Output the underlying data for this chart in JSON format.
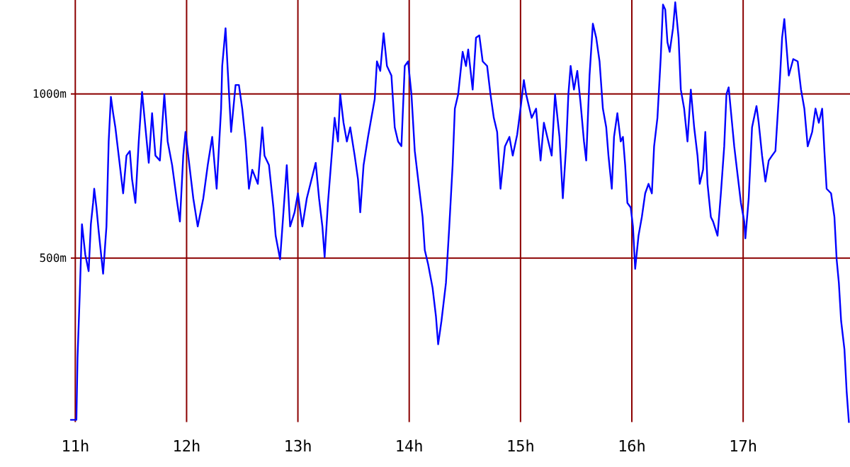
{
  "chart_data": {
    "type": "line",
    "grid": true,
    "marker": "none",
    "line_style": "solid",
    "xlim": [
      10.96,
      17.96
    ],
    "ylim": [
      0,
      1286
    ],
    "xticks": [
      {
        "value": 11,
        "label": "11h"
      },
      {
        "value": 12,
        "label": "12h"
      },
      {
        "value": 13,
        "label": "13h"
      },
      {
        "value": 14,
        "label": "14h"
      },
      {
        "value": 15,
        "label": "15h"
      },
      {
        "value": 16,
        "label": "16h"
      },
      {
        "value": 17,
        "label": "17h"
      }
    ],
    "yticks": [
      {
        "value": 500,
        "label": "500m"
      },
      {
        "value": 1000,
        "label": "1000m"
      }
    ],
    "series": [
      {
        "color": "#0000ff",
        "x": [
          10.96,
          11.01,
          11.02,
          11.04,
          11.06,
          11.09,
          11.12,
          11.14,
          11.16,
          11.17,
          11.19,
          11.21,
          11.25,
          11.28,
          11.3,
          11.32,
          11.34,
          11.36,
          11.39,
          11.43,
          11.46,
          11.49,
          11.51,
          11.54,
          11.57,
          11.6,
          11.63,
          11.66,
          11.69,
          11.72,
          11.76,
          11.8,
          11.83,
          11.87,
          11.91,
          11.94,
          11.97,
          11.99,
          12.02,
          12.06,
          12.1,
          12.15,
          12.19,
          12.23,
          12.27,
          12.31,
          12.32,
          12.35,
          12.37,
          12.4,
          12.44,
          12.47,
          12.5,
          12.53,
          12.56,
          12.59,
          12.64,
          12.68,
          12.7,
          12.74,
          12.78,
          12.8,
          12.84,
          12.87,
          12.9,
          12.93,
          12.97,
          13.0,
          13.04,
          13.08,
          13.16,
          13.19,
          13.22,
          13.24,
          13.27,
          13.3,
          13.33,
          13.36,
          13.38,
          13.41,
          13.44,
          13.47,
          13.51,
          13.54,
          13.56,
          13.59,
          13.63,
          13.66,
          13.69,
          13.71,
          13.74,
          13.77,
          13.8,
          13.84,
          13.87,
          13.9,
          13.93,
          13.96,
          13.99,
          14.02,
          14.05,
          14.09,
          14.12,
          14.14,
          14.17,
          14.21,
          14.24,
          14.26,
          14.29,
          14.33,
          14.36,
          14.39,
          14.41,
          14.44,
          14.48,
          14.51,
          14.53,
          14.57,
          14.6,
          14.63,
          14.66,
          14.7,
          14.73,
          14.76,
          14.79,
          14.82,
          14.86,
          14.9,
          14.93,
          14.97,
          15.0,
          15.03,
          15.05,
          15.1,
          15.14,
          15.18,
          15.21,
          15.25,
          15.28,
          15.31,
          15.35,
          15.38,
          15.41,
          15.43,
          15.45,
          15.48,
          15.51,
          15.54,
          15.57,
          15.59,
          15.62,
          15.65,
          15.68,
          15.71,
          15.74,
          15.77,
          15.79,
          15.82,
          15.84,
          15.87,
          15.9,
          15.92,
          15.94,
          15.96,
          15.99,
          16.01,
          16.03,
          16.06,
          16.09,
          16.12,
          16.15,
          16.18,
          16.2,
          16.23,
          16.26,
          16.28,
          16.3,
          16.32,
          16.34,
          16.37,
          16.39,
          16.42,
          16.44,
          16.47,
          16.5,
          16.53,
          16.56,
          16.59,
          16.61,
          16.64,
          16.66,
          16.68,
          16.71,
          16.73,
          16.77,
          16.8,
          16.83,
          16.85,
          16.87,
          16.9,
          16.92,
          16.95,
          16.98,
          17.01,
          17.02,
          17.05,
          17.08,
          17.12,
          17.14,
          17.17,
          17.2,
          17.23,
          17.26,
          17.29,
          17.33,
          17.35,
          17.37,
          17.39,
          17.41,
          17.45,
          17.49,
          17.52,
          17.55,
          17.58,
          17.62,
          17.65,
          17.68,
          17.71,
          17.73,
          17.75,
          17.79,
          17.82,
          17.84,
          17.86,
          17.88,
          17.91,
          17.93,
          17.95
        ],
        "values": [
          7,
          7,
          194,
          388,
          603,
          510,
          460,
          603,
          668,
          711,
          654,
          582,
          452,
          596,
          855,
          991,
          941,
          898,
          812,
          697,
          812,
          826,
          740,
          668,
          855,
          1006,
          898,
          790,
          941,
          812,
          797,
          999,
          855,
          783,
          682,
          611,
          812,
          884,
          797,
          682,
          596,
          682,
          783,
          869,
          711,
          955,
          1085,
          1200,
          1070,
          884,
          1027,
          1027,
          955,
          855,
          711,
          769,
          726,
          898,
          812,
          783,
          654,
          568,
          496,
          639,
          783,
          596,
          639,
          697,
          596,
          682,
          790,
          682,
          596,
          503,
          668,
          797,
          927,
          855,
          999,
          912,
          855,
          898,
          812,
          740,
          639,
          783,
          869,
          927,
          984,
          1099,
          1070,
          1185,
          1085,
          1056,
          898,
          855,
          841,
          1085,
          1099,
          999,
          826,
          711,
          625,
          524,
          481,
          409,
          323,
          237,
          309,
          424,
          596,
          783,
          955,
          999,
          1128,
          1085,
          1135,
          1013,
          1171,
          1178,
          1099,
          1085,
          999,
          927,
          884,
          711,
          840,
          869,
          812,
          876,
          955,
          1042,
          999,
          927,
          955,
          797,
          912,
          855,
          812,
          999,
          869,
          682,
          840,
          999,
          1085,
          1013,
          1070,
          970,
          855,
          797,
          1056,
          1214,
          1171,
          1099,
          955,
          898,
          812,
          711,
          869,
          941,
          855,
          869,
          783,
          668,
          654,
          596,
          467,
          568,
          625,
          697,
          726,
          697,
          840,
          927,
          1113,
          1272,
          1257,
          1157,
          1128,
          1200,
          1279,
          1171,
          1013,
          955,
          855,
          1013,
          898,
          812,
          726,
          769,
          884,
          726,
          625,
          611,
          568,
          697,
          840,
          999,
          1020,
          912,
          840,
          754,
          668,
          611,
          560,
          682,
          898,
          963,
          912,
          812,
          733,
          797,
          812,
          826,
          1042,
          1171,
          1228,
          1142,
          1056,
          1106,
          1099,
          1013,
          955,
          840,
          884,
          955,
          912,
          955,
          826,
          711,
          697,
          625,
          496,
          424,
          309,
          222,
          93,
          0
        ]
      }
    ]
  }
}
